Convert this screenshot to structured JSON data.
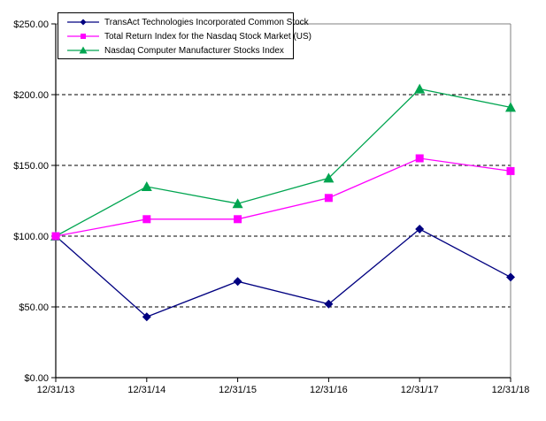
{
  "chart_data": {
    "type": "line",
    "title": "",
    "xlabel": "",
    "ylabel": "",
    "categories": [
      "12/31/13",
      "12/31/14",
      "12/31/15",
      "12/31/16",
      "12/31/17",
      "12/31/18"
    ],
    "series": [
      {
        "name": "TransAct Technologies Incorporated Common Stock",
        "color": "#000080",
        "marker": "diamond",
        "values": [
          100,
          43,
          68,
          52,
          105,
          71
        ]
      },
      {
        "name": "Total Return Index for the Nasdaq Stock Market (US)",
        "color": "#FF00FF",
        "marker": "square",
        "values": [
          100,
          112,
          112,
          127,
          155,
          146
        ]
      },
      {
        "name": "Nasdaq Computer Manufacturer Stocks Index",
        "color": "#00A550",
        "marker": "triangle",
        "values": [
          100,
          135,
          123,
          141,
          204,
          191
        ]
      }
    ],
    "ylim": [
      0,
      250
    ],
    "ytick_step": 50,
    "ytick_labels": [
      "$0.00",
      "$50.00",
      "$100.00",
      "$150.00",
      "$200.00",
      "$250.00"
    ],
    "grid": "horizontal-dashed",
    "legend_position": "top-left",
    "axis_color": "#000000",
    "border_color": "#808080",
    "background_color": "#FFFFFF"
  }
}
